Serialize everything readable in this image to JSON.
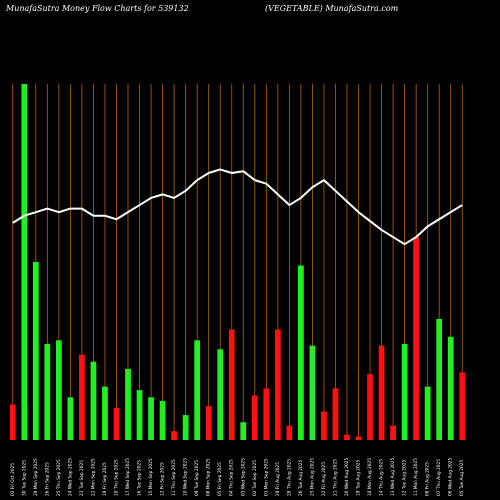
{
  "header": {
    "title": "MunafaSutra  Money Flow  Charts for 539132",
    "subtitle": "(VEGETABLE) MunafaSutra.com"
  },
  "colors": {
    "background": "#000000",
    "up_bar": "#22ee22",
    "down_bar": "#ff1111",
    "grid": "#b8650a",
    "line": "#ffffff",
    "text": "#ffffff"
  },
  "chart_data": {
    "type": "bar",
    "title": "",
    "ylim": [
      0,
      100
    ],
    "grid": true,
    "bars": {
      "categories": [
        "03 Fri Oct 2025",
        "30 Tue Sep 2025",
        "29 Mon Sep 2025",
        "26 Fri Sep 2025",
        "25 Thu Sep 2025",
        "24 Wed Sep 2025",
        "23 Tue Sep 2025",
        "22 Mon Sep 2025",
        "19 Fri Sep 2025",
        "18 Thu Sep 2025",
        "17 Wed Sep 2025",
        "16 Tue Sep 2025",
        "15 Mon Sep 2025",
        "12 Fri Sep 2025",
        "11 Thu Sep 2025",
        "10 Wed Sep 2025",
        "09 Tue Sep 2025",
        "08 Mon Sep 2025",
        "05 Fri Sep 2025",
        "04 Thu Sep 2025",
        "03 Wed Sep 2025",
        "02 Tue Sep 2025",
        "01 Mon Sep 2025",
        "29 Fri Aug 2025",
        "28 Thu Aug 2025",
        "26 Tue Aug 2025",
        "25 Mon Aug 2025",
        "22 Fri Aug 2025",
        "21 Thu Aug 2025",
        "20 Wed Aug 2025",
        "19 Tue Aug 2025",
        "18 Mon Aug 2025",
        "14 Thu Aug 2025",
        "13 Wed Aug 2025",
        "12 Tue Aug 2025",
        "11 Mon Aug 2025",
        "08 Fri Aug 2025",
        "07 Thu Aug 2025",
        "06 Wed Aug 2025",
        "05 Tue Aug 2025"
      ],
      "values": [
        10,
        100,
        50,
        27,
        28,
        12,
        24,
        22,
        15,
        9,
        20,
        14,
        12,
        11,
        2.5,
        7,
        28,
        9.5,
        25.5,
        31,
        5,
        12.5,
        14.5,
        31,
        4,
        49,
        26.5,
        8,
        14.5,
        1.5,
        1,
        18.5,
        26.5,
        4,
        27,
        57,
        15,
        34,
        29,
        19
      ],
      "colors": [
        "red",
        "green",
        "green",
        "green",
        "green",
        "green",
        "red",
        "green",
        "green",
        "red",
        "green",
        "green",
        "green",
        "green",
        "red",
        "green",
        "green",
        "red",
        "green",
        "red",
        "green",
        "red",
        "red",
        "red",
        "red",
        "green",
        "green",
        "red",
        "red",
        "red",
        "red",
        "red",
        "red",
        "red",
        "green",
        "red",
        "green",
        "green",
        "green",
        "red"
      ]
    },
    "line": {
      "name": "",
      "values": [
        61,
        63,
        64,
        65,
        64,
        65,
        65,
        63,
        63,
        62,
        64,
        66,
        68,
        69,
        68,
        70,
        73,
        75,
        76,
        75,
        75.5,
        73,
        72,
        69,
        66,
        68,
        71,
        73,
        70,
        67,
        64,
        61.5,
        59,
        57,
        55,
        57,
        60,
        62,
        64,
        66
      ]
    }
  }
}
